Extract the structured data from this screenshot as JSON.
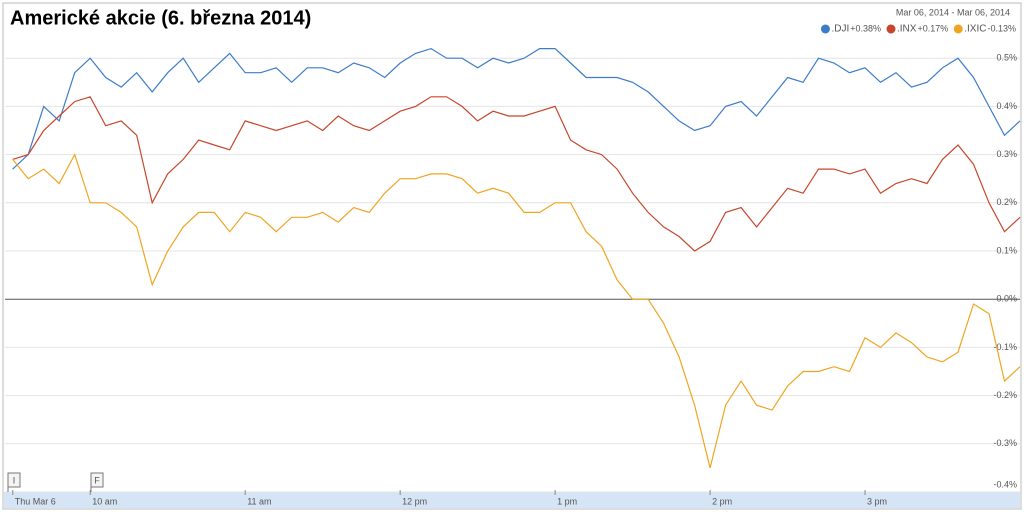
{
  "chart_data": {
    "type": "line",
    "title": "Americké akcie (6. března 2014)",
    "date_range": "Mar 06, 2014 - Mar 06, 2014",
    "flags": [
      "I",
      "F"
    ],
    "x": [
      9.5,
      9.6,
      9.7,
      9.8,
      9.9,
      10.0,
      10.1,
      10.2,
      10.3,
      10.4,
      10.5,
      10.6,
      10.7,
      10.8,
      10.9,
      11.0,
      11.1,
      11.2,
      11.3,
      11.4,
      11.5,
      11.6,
      11.7,
      11.8,
      11.9,
      12.0,
      12.1,
      12.2,
      12.3,
      12.4,
      12.5,
      12.6,
      12.7,
      12.8,
      12.9,
      13.0,
      13.1,
      13.2,
      13.3,
      13.4,
      13.5,
      13.6,
      13.7,
      13.8,
      13.9,
      14.0,
      14.1,
      14.2,
      14.3,
      14.4,
      14.5,
      14.6,
      14.7,
      14.8,
      14.9,
      15.0,
      15.1,
      15.2,
      15.3,
      15.4,
      15.5,
      15.6,
      15.7,
      15.8,
      15.9,
      16.0
    ],
    "xlim": [
      9.45,
      16.0
    ],
    "xticks": [
      {
        "value": 9.5,
        "label": "Thu Mar 6"
      },
      {
        "value": 10,
        "label": "10 am"
      },
      {
        "value": 11,
        "label": "11 am"
      },
      {
        "value": 12,
        "label": "12 pm"
      },
      {
        "value": 13,
        "label": "1 pm"
      },
      {
        "value": 14,
        "label": "2 pm"
      },
      {
        "value": 15,
        "label": "3 pm"
      }
    ],
    "ylim": [
      -0.4,
      0.6
    ],
    "yticks": [
      {
        "value": 0.5,
        "label": "0.5%"
      },
      {
        "value": 0.4,
        "label": "0.4%"
      },
      {
        "value": 0.3,
        "label": "0.3%"
      },
      {
        "value": 0.2,
        "label": "0.2%"
      },
      {
        "value": 0.1,
        "label": "0.1%"
      },
      {
        "value": 0,
        "label": "0.0%"
      },
      {
        "value": -0.1,
        "label": "-0.1%"
      },
      {
        "value": -0.2,
        "label": "-0.2%"
      },
      {
        "value": -0.3,
        "label": "-0.3%"
      },
      {
        "value": -0.4,
        "label": "-0.4%"
      }
    ],
    "grid": true,
    "series": [
      {
        "name": ".DJI",
        "change": "+0.38%",
        "change_color": "#2a9d2a",
        "color": "#3d7cc9",
        "values": [
          0.27,
          0.3,
          0.4,
          0.37,
          0.47,
          0.5,
          0.46,
          0.44,
          0.47,
          0.43,
          0.47,
          0.5,
          0.45,
          0.48,
          0.51,
          0.47,
          0.47,
          0.48,
          0.45,
          0.48,
          0.48,
          0.47,
          0.49,
          0.48,
          0.46,
          0.49,
          0.51,
          0.52,
          0.5,
          0.5,
          0.48,
          0.5,
          0.49,
          0.5,
          0.52,
          0.52,
          0.49,
          0.46,
          0.46,
          0.46,
          0.45,
          0.43,
          0.4,
          0.37,
          0.35,
          0.36,
          0.4,
          0.41,
          0.38,
          0.42,
          0.46,
          0.45,
          0.5,
          0.49,
          0.47,
          0.48,
          0.45,
          0.47,
          0.44,
          0.45,
          0.48,
          0.5,
          0.46,
          0.4,
          0.34,
          0.37
        ]
      },
      {
        "name": ".INX",
        "change": "+0.17%",
        "change_color": "#2a9d2a",
        "color": "#c8462c",
        "values": [
          0.29,
          0.3,
          0.35,
          0.38,
          0.41,
          0.42,
          0.36,
          0.37,
          0.34,
          0.2,
          0.26,
          0.29,
          0.33,
          0.32,
          0.31,
          0.37,
          0.36,
          0.35,
          0.36,
          0.37,
          0.35,
          0.38,
          0.36,
          0.35,
          0.37,
          0.39,
          0.4,
          0.42,
          0.42,
          0.4,
          0.37,
          0.39,
          0.38,
          0.38,
          0.39,
          0.4,
          0.33,
          0.31,
          0.3,
          0.27,
          0.22,
          0.18,
          0.15,
          0.13,
          0.1,
          0.12,
          0.18,
          0.19,
          0.15,
          0.19,
          0.23,
          0.22,
          0.27,
          0.27,
          0.26,
          0.27,
          0.22,
          0.24,
          0.25,
          0.24,
          0.29,
          0.32,
          0.28,
          0.2,
          0.14,
          0.17
        ]
      },
      {
        "name": ".IXIC",
        "change": "-0.13%",
        "change_color": "#d0312d",
        "color": "#f0a521",
        "values": [
          0.29,
          0.25,
          0.27,
          0.24,
          0.3,
          0.2,
          0.2,
          0.18,
          0.15,
          0.03,
          0.1,
          0.15,
          0.18,
          0.18,
          0.14,
          0.18,
          0.17,
          0.14,
          0.17,
          0.17,
          0.18,
          0.16,
          0.19,
          0.18,
          0.22,
          0.25,
          0.25,
          0.26,
          0.26,
          0.25,
          0.22,
          0.23,
          0.22,
          0.18,
          0.18,
          0.2,
          0.2,
          0.14,
          0.11,
          0.04,
          0.0,
          0.0,
          -0.05,
          -0.12,
          -0.22,
          -0.35,
          -0.22,
          -0.17,
          -0.22,
          -0.23,
          -0.18,
          -0.15,
          -0.15,
          -0.14,
          -0.15,
          -0.08,
          -0.1,
          -0.07,
          -0.09,
          -0.12,
          -0.13,
          -0.11,
          -0.01,
          -0.03,
          -0.17,
          -0.14
        ]
      }
    ]
  }
}
